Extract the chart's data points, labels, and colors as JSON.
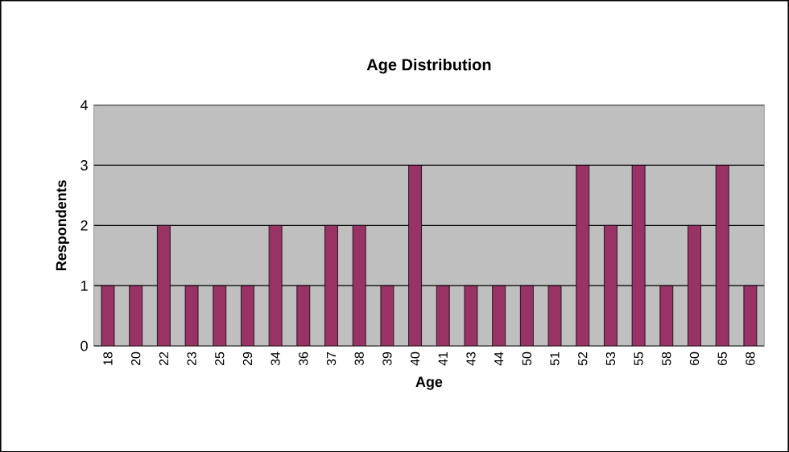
{
  "chart_data": {
    "type": "bar",
    "title": "Age Distribution",
    "xlabel": "Age",
    "ylabel": "Respondents",
    "categories": [
      "18",
      "20",
      "22",
      "23",
      "25",
      "29",
      "34",
      "36",
      "37",
      "38",
      "39",
      "40",
      "41",
      "43",
      "44",
      "50",
      "51",
      "52",
      "53",
      "55",
      "58",
      "60",
      "65",
      "68"
    ],
    "values": [
      1,
      1,
      2,
      1,
      1,
      1,
      2,
      1,
      2,
      2,
      1,
      3,
      1,
      1,
      1,
      1,
      1,
      3,
      2,
      3,
      1,
      2,
      3,
      1
    ],
    "color": "#993366",
    "ylim": [
      0,
      4
    ],
    "yticks": [
      0,
      1,
      2,
      3,
      4
    ],
    "grid": "y"
  }
}
